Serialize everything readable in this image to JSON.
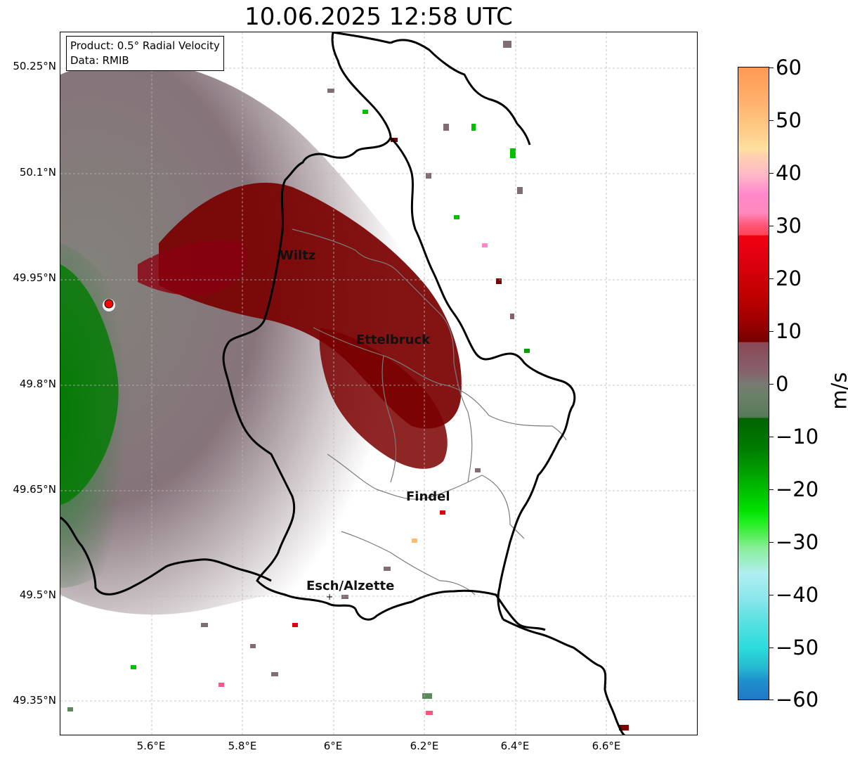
{
  "title": "10.06.2025 12:58 UTC",
  "info_box": {
    "line1": "Product: 0.5° Radial Velocity",
    "line2": "Data: RMIB"
  },
  "lat_labels": [
    "50.25°N",
    "50.1°N",
    "49.95°N",
    "49.8°N",
    "49.65°N",
    "49.5°N",
    "49.35°N"
  ],
  "lon_labels": [
    "5.6°E",
    "5.8°E",
    "6°E",
    "6.2°E",
    "6.4°E",
    "6.6°E"
  ],
  "cities": [
    "Wiltz",
    "Ettelbruck",
    "Findel",
    "Esch/Alzette"
  ],
  "colorbar": {
    "unit": "m/s",
    "ticks": [
      "60",
      "50",
      "40",
      "30",
      "20",
      "10",
      "0",
      "−10",
      "−20",
      "−30",
      "−40",
      "−50",
      "−60"
    ],
    "range": [
      -60,
      60
    ],
    "colors": {
      "strong_negative": "#1f78c8",
      "cyan": "#2adbdb",
      "light_cyan": "#b0eef0",
      "green": "#00c000",
      "dark_green": "#006400",
      "zero_grey": "#7a7a72",
      "maroon_grey": "#866070",
      "dark_red": "#7a0000",
      "red": "#e00010",
      "pink": "#ff88cc",
      "peach": "#ffe0a0",
      "orange": "#ff9955"
    }
  },
  "radar_site": {
    "marker_color": "#ff0000"
  }
}
